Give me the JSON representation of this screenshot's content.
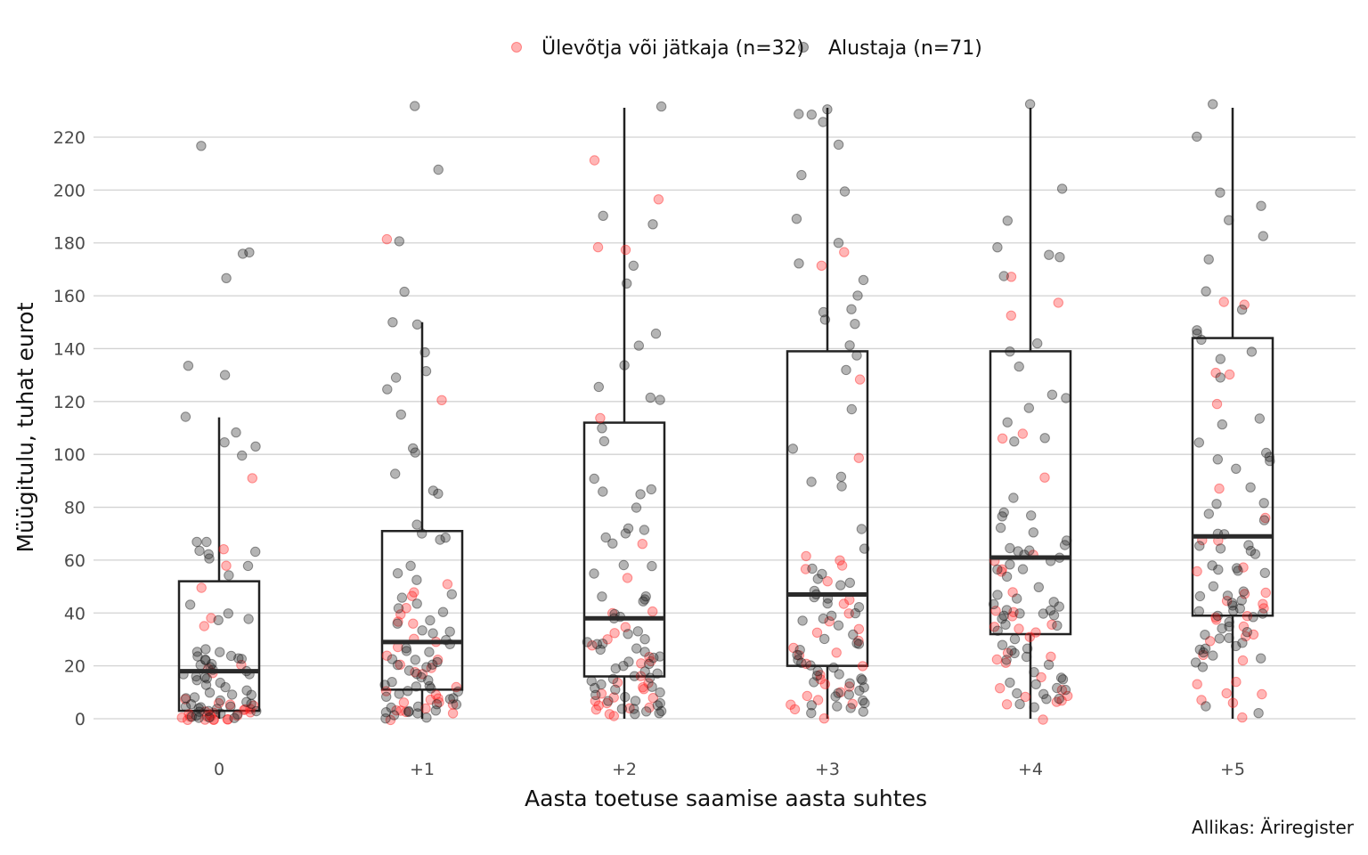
{
  "chart_data": {
    "type": "box+jitter scatter",
    "xlabel": "Aasta toetuse saamise aasta suhtes",
    "ylabel": "Müügitulu, tuhat eurot",
    "caption": "Allikas: Äriregister",
    "ylim": [
      -10,
      232
    ],
    "y_ticks": [
      0,
      20,
      40,
      60,
      80,
      100,
      120,
      140,
      160,
      180,
      200,
      220
    ],
    "categories": [
      "0",
      "+1",
      "+2",
      "+3",
      "+4",
      "+5"
    ],
    "grid": "horizontal",
    "legend_position": "top",
    "series": [
      {
        "name": "Ülevõtja või jätkaja (n=32)",
        "color": "#ff2020"
      },
      {
        "name": "Alustaja (n=71)",
        "color": "#1a1a1a"
      }
    ],
    "boxes": [
      {
        "category": "0",
        "q1": 3,
        "median": 18,
        "q3": 52,
        "whisker_low": 0,
        "whisker_high": 114
      },
      {
        "category": "+1",
        "q1": 11,
        "median": 29,
        "q3": 71,
        "whisker_low": 0,
        "whisker_high": 150
      },
      {
        "category": "+2",
        "q1": 16,
        "median": 38,
        "q3": 112,
        "whisker_low": 0,
        "whisker_high": 232
      },
      {
        "category": "+3",
        "q1": 20,
        "median": 47,
        "q3": 139,
        "whisker_low": 0,
        "whisker_high": 232
      },
      {
        "category": "+4",
        "q1": 32,
        "median": 61,
        "q3": 139,
        "whisker_low": 0,
        "whisker_high": 232
      },
      {
        "category": "+5",
        "q1": 39,
        "median": 69,
        "q3": 144,
        "whisker_low": 0,
        "whisker_high": 232
      }
    ],
    "points": {
      "0": {
        "Ülevõtja või jätkaja (n=32)": [
          91,
          64,
          58,
          50,
          38,
          35,
          20,
          19,
          17,
          7,
          6,
          5,
          5,
          4,
          4,
          3,
          3,
          2,
          2,
          2,
          1,
          1,
          1,
          1,
          1,
          0,
          0,
          0,
          0,
          0,
          0,
          0
        ],
        "Alustaja (n=71)": [
          217,
          176,
          176,
          167,
          134,
          130,
          114,
          108,
          105,
          103,
          100,
          67,
          67,
          64,
          63,
          62,
          61,
          58,
          54,
          43,
          40,
          38,
          37,
          26,
          25,
          25,
          24,
          24,
          23,
          23,
          22,
          22,
          21,
          20,
          20,
          19,
          18,
          17,
          17,
          16,
          16,
          15,
          15,
          14,
          13,
          12,
          11,
          10,
          9,
          9,
          8,
          8,
          7,
          6,
          6,
          5,
          5,
          5,
          4,
          4,
          4,
          3,
          3,
          3,
          2,
          2,
          1,
          1,
          0,
          0,
          0
        ]
      },
      "+1": {
        "Ülevõtja või jätkaja (n=32)": [
          181,
          121,
          51,
          48,
          46,
          42,
          39,
          37,
          36,
          30,
          29,
          27,
          24,
          22,
          20,
          19,
          18,
          17,
          12,
          10,
          9,
          8,
          7,
          6,
          6,
          5,
          4,
          3,
          3,
          3,
          2,
          0
        ],
        "Alustaja (n=71)": [
          232,
          208,
          181,
          161,
          150,
          149,
          139,
          132,
          129,
          125,
          115,
          102,
          101,
          93,
          86,
          85,
          73,
          70,
          69,
          68,
          58,
          55,
          52,
          47,
          46,
          44,
          42,
          40,
          37,
          36,
          33,
          33,
          32,
          30,
          28,
          27,
          26,
          25,
          23,
          22,
          21,
          20,
          20,
          19,
          18,
          17,
          16,
          15,
          14,
          13,
          12,
          12,
          11,
          10,
          10,
          9,
          8,
          8,
          7,
          6,
          5,
          5,
          4,
          3,
          3,
          3,
          2,
          2,
          1,
          0,
          0
        ]
      },
      "+2": {
        "Ülevõtja või jätkaja (n=32)": [
          211,
          196,
          178,
          177,
          114,
          66,
          53,
          41,
          40,
          35,
          32,
          30,
          28,
          23,
          22,
          21,
          16,
          14,
          13,
          12,
          11,
          9,
          8,
          8,
          7,
          6,
          5,
          4,
          4,
          3,
          2,
          1
        ],
        "Alustaja (n=71)": [
          232,
          190,
          187,
          171,
          165,
          146,
          141,
          134,
          126,
          121,
          121,
          110,
          105,
          91,
          87,
          86,
          85,
          80,
          72,
          71,
          70,
          69,
          66,
          58,
          58,
          55,
          46,
          46,
          45,
          44,
          40,
          39,
          38,
          33,
          32,
          30,
          29,
          28,
          28,
          27,
          26,
          25,
          24,
          23,
          22,
          21,
          20,
          19,
          18,
          17,
          16,
          15,
          15,
          14,
          13,
          12,
          12,
          11,
          10,
          9,
          8,
          7,
          7,
          6,
          5,
          4,
          4,
          3,
          3,
          2,
          2
        ]
      },
      "+3": {
        "Ülevõtja või jätkaja (n=32)": [
          177,
          171,
          128,
          99,
          62,
          60,
          58,
          57,
          52,
          45,
          43,
          40,
          37,
          34,
          33,
          29,
          27,
          25,
          24,
          21,
          20,
          17,
          15,
          13,
          12,
          10,
          9,
          7,
          6,
          5,
          4,
          0
        ],
        "Alustaja (n=71)": [
          231,
          229,
          229,
          226,
          217,
          206,
          199,
          189,
          180,
          172,
          166,
          160,
          155,
          154,
          151,
          149,
          141,
          137,
          132,
          117,
          102,
          92,
          90,
          88,
          72,
          64,
          57,
          55,
          53,
          51,
          50,
          48,
          47,
          46,
          45,
          44,
          42,
          40,
          39,
          38,
          37,
          35,
          32,
          30,
          29,
          28,
          26,
          24,
          22,
          21,
          20,
          19,
          18,
          17,
          16,
          15,
          15,
          14,
          13,
          12,
          11,
          10,
          9,
          8,
          7,
          6,
          5,
          5,
          4,
          3,
          2
        ]
      },
      "+4": {
        "Ülevõtja või jätkaja (n=32)": [
          167,
          157,
          152,
          108,
          106,
          91,
          62,
          60,
          57,
          56,
          48,
          41,
          40,
          39,
          36,
          35,
          34,
          33,
          31,
          25,
          23,
          22,
          21,
          16,
          12,
          11,
          9,
          8,
          7,
          6,
          5,
          0
        ],
        "Alustaja (n=71)": [
          232,
          201,
          188,
          178,
          175,
          175,
          167,
          142,
          139,
          133,
          123,
          121,
          118,
          112,
          106,
          105,
          84,
          78,
          77,
          77,
          72,
          70,
          67,
          66,
          65,
          64,
          63,
          62,
          61,
          60,
          58,
          57,
          56,
          54,
          50,
          47,
          45,
          44,
          43,
          42,
          41,
          41,
          40,
          40,
          39,
          39,
          38,
          36,
          35,
          33,
          30,
          28,
          27,
          26,
          25,
          23,
          22,
          20,
          18,
          16,
          15,
          14,
          13,
          12,
          11,
          10,
          9,
          8,
          7,
          6,
          4
        ]
      },
      "+5": {
        "Ülevõtja või jätkaja (n=32)": [
          158,
          157,
          131,
          130,
          119,
          87,
          76,
          68,
          67,
          57,
          56,
          48,
          47,
          45,
          43,
          42,
          39,
          38,
          37,
          35,
          32,
          31,
          29,
          24,
          22,
          14,
          13,
          10,
          9,
          7,
          6,
          0
        ],
        "Alustaja (n=71)": [
          232,
          220,
          199,
          194,
          189,
          183,
          174,
          162,
          155,
          147,
          146,
          143,
          139,
          136,
          129,
          114,
          111,
          104,
          101,
          99,
          98,
          97,
          95,
          88,
          82,
          81,
          78,
          75,
          70,
          70,
          66,
          65,
          64,
          63,
          62,
          58,
          57,
          56,
          56,
          55,
          50,
          48,
          47,
          46,
          45,
          44,
          43,
          42,
          41,
          41,
          40,
          39,
          38,
          37,
          35,
          34,
          33,
          32,
          31,
          30,
          29,
          28,
          27,
          26,
          25,
          24,
          23,
          21,
          20,
          5,
          2
        ]
      }
    }
  }
}
